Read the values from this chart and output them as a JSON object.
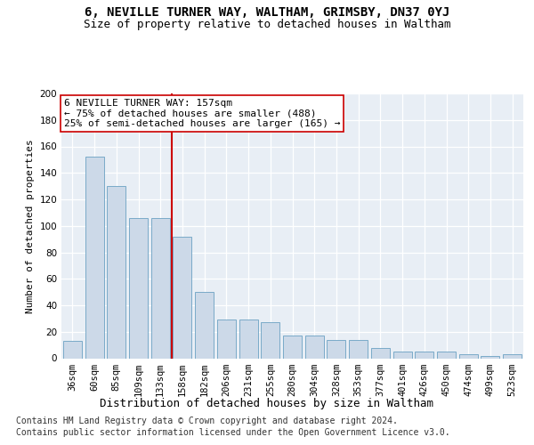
{
  "title": "6, NEVILLE TURNER WAY, WALTHAM, GRIMSBY, DN37 0YJ",
  "subtitle": "Size of property relative to detached houses in Waltham",
  "xlabel": "Distribution of detached houses by size in Waltham",
  "ylabel": "Number of detached properties",
  "categories": [
    "36sqm",
    "60sqm",
    "85sqm",
    "109sqm",
    "133sqm",
    "158sqm",
    "182sqm",
    "206sqm",
    "231sqm",
    "255sqm",
    "280sqm",
    "304sqm",
    "328sqm",
    "353sqm",
    "377sqm",
    "401sqm",
    "426sqm",
    "450sqm",
    "474sqm",
    "499sqm",
    "523sqm"
  ],
  "values": [
    13,
    152,
    130,
    106,
    106,
    92,
    50,
    29,
    29,
    27,
    17,
    17,
    14,
    14,
    8,
    5,
    5,
    5,
    3,
    2,
    3
  ],
  "bar_color": "#ccd9e8",
  "bar_edge_color": "#7aaac8",
  "vline_color": "#cc0000",
  "vline_x_idx": 5,
  "annotation_line1": "6 NEVILLE TURNER WAY: 157sqm",
  "annotation_line2": "← 75% of detached houses are smaller (488)",
  "annotation_line3": "25% of semi-detached houses are larger (165) →",
  "annotation_box_facecolor": "#ffffff",
  "annotation_box_edgecolor": "#cc0000",
  "ylim": [
    0,
    200
  ],
  "yticks": [
    0,
    20,
    40,
    60,
    80,
    100,
    120,
    140,
    160,
    180,
    200
  ],
  "footer_line1": "Contains HM Land Registry data © Crown copyright and database right 2024.",
  "footer_line2": "Contains public sector information licensed under the Open Government Licence v3.0.",
  "plot_bg_color": "#e8eef5",
  "grid_color": "#ffffff",
  "title_fontsize": 10,
  "subtitle_fontsize": 9,
  "xlabel_fontsize": 9,
  "ylabel_fontsize": 8,
  "tick_fontsize": 7.5,
  "annotation_fontsize": 8,
  "footer_fontsize": 7
}
